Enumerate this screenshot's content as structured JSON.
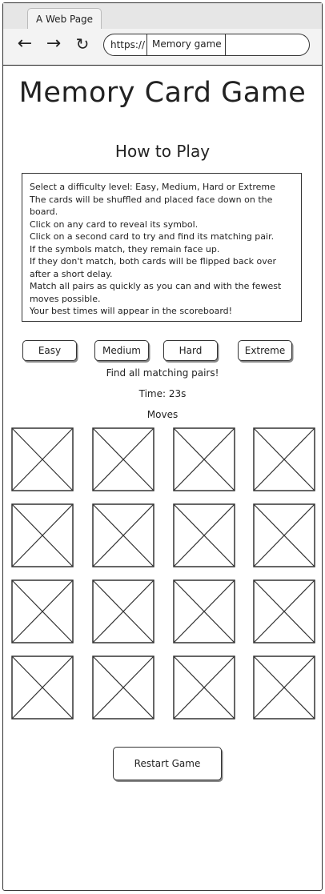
{
  "browser": {
    "tab_title": "A Web Page",
    "url_scheme": "https://",
    "url_page": "Memory game",
    "back_icon": "arrow-left",
    "forward_icon": "arrow-right",
    "reload_icon": "reload"
  },
  "page": {
    "title": "Memory Card Game",
    "how_to_play_heading": "How to Play",
    "instructions": [
      "Select a difficulty level: Easy, Medium, Hard or Extreme",
      "The cards will be shuffled and placed face down on the",
      "board.",
      "Click on any card to reveal its symbol.",
      "Click on a second card to try and find its matching pair.",
      "If the symbols match, they remain face up.",
      "If they don't match, both cards will be flipped back over",
      "after a short delay.",
      "Match all pairs as quickly as you can and with the fewest",
      "moves possible.",
      "Your best times will appear in the scoreboard!"
    ],
    "difficulty": [
      "Easy",
      "Medium",
      "Hard",
      "Extreme"
    ],
    "status_message": "Find all matching pairs!",
    "time_label": "Time: 23s",
    "moves_label": "Moves",
    "card_count": 16,
    "restart_label": "Restart Game"
  }
}
